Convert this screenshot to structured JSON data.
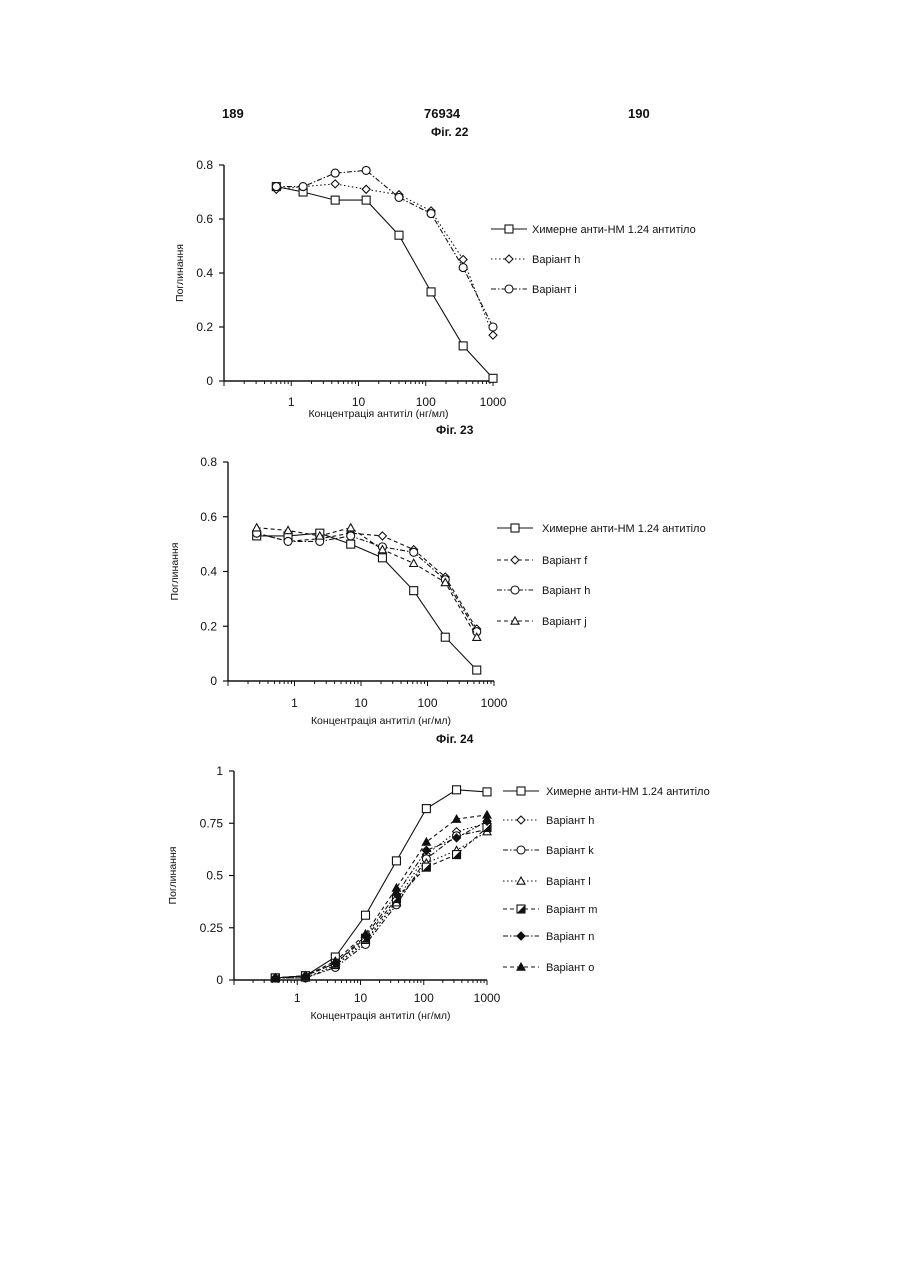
{
  "header": {
    "page_left": "189",
    "patent_number": "76934",
    "page_right": "190"
  },
  "chart_data": [
    {
      "figure_label": "Фіг. 22",
      "type": "line",
      "xscale": "log",
      "xlim": [
        0.1,
        1000
      ],
      "xticks": [
        1,
        10,
        100,
        1000
      ],
      "xtick_labels": [
        "1",
        "10",
        "100",
        "1000"
      ],
      "ylim": [
        0,
        0.8
      ],
      "yticks": [
        0,
        0.2,
        0.4,
        0.6,
        0.8
      ],
      "ytick_labels": [
        "0",
        "0.2",
        "0.4",
        "0.6",
        "0.8"
      ],
      "xlabel": "Концентрація антитіл (нг/мл)",
      "ylabel": "Поглинання",
      "grid": false,
      "legend_position": "right",
      "series": [
        {
          "name": "Химерне анти-НМ 1.24 антитіло",
          "marker": "square",
          "dash": "solid",
          "x": [
            0.6,
            1.5,
            4.5,
            13,
            40,
            120,
            360,
            1000
          ],
          "y": [
            0.72,
            0.7,
            0.67,
            0.67,
            0.54,
            0.33,
            0.13,
            0.01
          ]
        },
        {
          "name": "Варіант h",
          "marker": "diamond",
          "dash": "dotted",
          "x": [
            0.6,
            1.5,
            4.5,
            13,
            40,
            120,
            360,
            1000
          ],
          "y": [
            0.71,
            0.72,
            0.73,
            0.71,
            0.69,
            0.63,
            0.45,
            0.17
          ]
        },
        {
          "name": "Варіант i",
          "marker": "circle",
          "dash": "dashdot",
          "x": [
            0.6,
            1.5,
            4.5,
            13,
            40,
            120,
            360,
            1000
          ],
          "y": [
            0.72,
            0.72,
            0.77,
            0.78,
            0.68,
            0.62,
            0.42,
            0.2
          ]
        }
      ]
    },
    {
      "figure_label": "Фіг. 23",
      "type": "line",
      "xscale": "log",
      "xlim": [
        0.1,
        1000
      ],
      "xticks": [
        1,
        10,
        100,
        1000
      ],
      "xtick_labels": [
        "1",
        "10",
        "100",
        "1000"
      ],
      "ylim": [
        0,
        0.8
      ],
      "yticks": [
        0,
        0.2,
        0.4,
        0.6,
        0.8
      ],
      "ytick_labels": [
        "0",
        "0.2",
        "0.4",
        "0.6",
        "0.8"
      ],
      "xlabel": "Концентрація антитіл (нг/мл)",
      "ylabel": "Поглинання",
      "grid": false,
      "legend_position": "right",
      "series": [
        {
          "name": "Химерне анти-НМ 1.24 антитіло",
          "marker": "square",
          "dash": "solid",
          "x": [
            0.27,
            0.8,
            2.4,
            7,
            21,
            62,
            185,
            550
          ],
          "y": [
            0.53,
            0.53,
            0.54,
            0.5,
            0.45,
            0.33,
            0.16,
            0.04
          ]
        },
        {
          "name": "Варіант f",
          "marker": "diamond",
          "dash": "dashed",
          "x": [
            0.27,
            0.8,
            2.4,
            7,
            21,
            62,
            185,
            550
          ],
          "y": [
            0.54,
            0.51,
            0.52,
            0.54,
            0.53,
            0.48,
            0.38,
            0.19
          ]
        },
        {
          "name": "Варіант h",
          "marker": "circle",
          "dash": "dashdot",
          "x": [
            0.27,
            0.8,
            2.4,
            7,
            21,
            62,
            185,
            550
          ],
          "y": [
            0.54,
            0.51,
            0.51,
            0.53,
            0.49,
            0.47,
            0.37,
            0.18
          ]
        },
        {
          "name": "Варіант j",
          "marker": "triangle",
          "dash": "dashed",
          "x": [
            0.27,
            0.8,
            2.4,
            7,
            21,
            62,
            185,
            550
          ],
          "y": [
            0.56,
            0.55,
            0.53,
            0.56,
            0.48,
            0.43,
            0.36,
            0.16
          ]
        }
      ]
    },
    {
      "figure_label": "Фіг. 24",
      "type": "line",
      "xscale": "log",
      "xlim": [
        0.1,
        1000
      ],
      "xticks": [
        1,
        10,
        100,
        1000
      ],
      "xtick_labels": [
        "1",
        "10",
        "100",
        "1000"
      ],
      "ylim": [
        0,
        1
      ],
      "yticks": [
        0,
        0.25,
        0.5,
        0.75,
        1
      ],
      "ytick_labels": [
        "0",
        "0.25",
        "0.5",
        "0.75",
        "1"
      ],
      "xlabel": "Концентрація антитіл (нг/мл)",
      "ylabel": "Поглинання",
      "grid": false,
      "legend_position": "right",
      "series": [
        {
          "name": "Химерне анти-НМ 1.24 антитіло",
          "marker": "square",
          "dash": "solid",
          "x": [
            0.45,
            1.35,
            4,
            12,
            37,
            110,
            330,
            1000
          ],
          "y": [
            0.01,
            0.02,
            0.11,
            0.31,
            0.57,
            0.82,
            0.91,
            0.9
          ]
        },
        {
          "name": "Варіант h",
          "marker": "diamond",
          "dash": "dotted",
          "x": [
            0.45,
            1.35,
            4,
            12,
            37,
            110,
            330,
            1000
          ],
          "y": [
            0.01,
            0.01,
            0.07,
            0.18,
            0.38,
            0.6,
            0.71,
            0.75
          ]
        },
        {
          "name": "Варіант k",
          "marker": "circle",
          "dash": "dashdot",
          "x": [
            0.45,
            1.35,
            4,
            12,
            37,
            110,
            330,
            1000
          ],
          "y": [
            0.01,
            0.01,
            0.06,
            0.17,
            0.36,
            0.58,
            0.69,
            0.72
          ]
        },
        {
          "name": "Варіант l",
          "marker": "triangle",
          "dash": "dotted",
          "x": [
            0.45,
            1.35,
            4,
            12,
            37,
            110,
            330,
            1000
          ],
          "y": [
            0.01,
            0.01,
            0.07,
            0.19,
            0.37,
            0.56,
            0.62,
            0.71
          ]
        },
        {
          "name": "Варіант m",
          "marker": "half-square",
          "dash": "dashed",
          "x": [
            0.45,
            1.35,
            4,
            12,
            37,
            110,
            330,
            1000
          ],
          "y": [
            0.01,
            0.02,
            0.08,
            0.2,
            0.39,
            0.54,
            0.6,
            0.73
          ]
        },
        {
          "name": "Варіант n",
          "marker": "filled-diamond",
          "dash": "dashdot",
          "x": [
            0.45,
            1.35,
            4,
            12,
            37,
            110,
            330,
            1000
          ],
          "y": [
            0.01,
            0.02,
            0.08,
            0.21,
            0.41,
            0.62,
            0.68,
            0.76
          ]
        },
        {
          "name": "Варіант o",
          "marker": "filled-triangle",
          "dash": "dashed",
          "x": [
            0.45,
            1.35,
            4,
            12,
            37,
            110,
            330,
            1000
          ],
          "y": [
            0.01,
            0.02,
            0.09,
            0.22,
            0.44,
            0.66,
            0.77,
            0.79
          ]
        }
      ]
    }
  ]
}
